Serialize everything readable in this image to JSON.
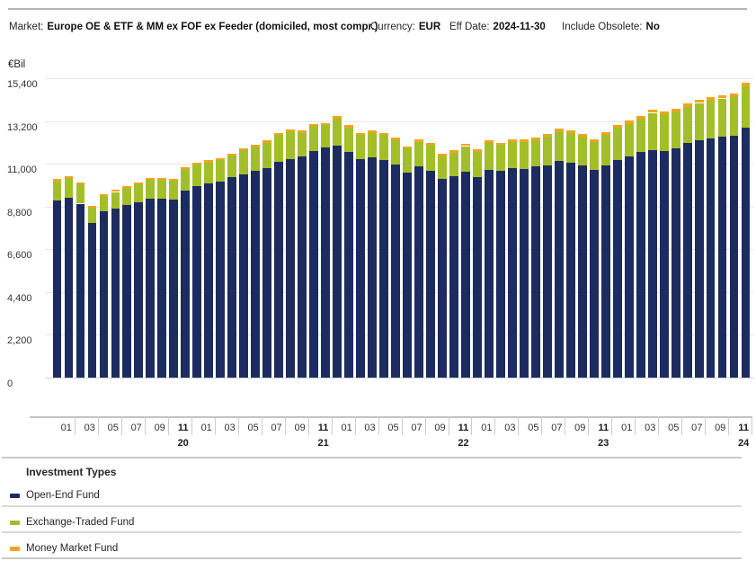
{
  "header": {
    "market_label": "Market:",
    "market_value": "Europe OE & ETF & MM ex FOF ex Feeder (domiciled, most compr.)",
    "currency_label": "Currency:",
    "currency_value": "EUR",
    "eff_date_label": "Eff Date:",
    "eff_date_value": "2024-11-30",
    "include_obsolete_label": "Include Obsolete:",
    "include_obsolete_value": "No"
  },
  "chart_data": {
    "type": "bar",
    "stacked": true,
    "title": "",
    "unit_label": "€Bil",
    "ylabel": "€Bil",
    "xlabel": "",
    "ylim": [
      0,
      15400
    ],
    "yticks": [
      0,
      2200,
      4400,
      6600,
      8800,
      11000,
      13200,
      15400
    ],
    "grid": true,
    "legend_title": "Investment Types",
    "legend_position": "bottom",
    "month_cell_labels": [
      "01",
      "03",
      "05",
      "07",
      "09",
      "11"
    ],
    "year_labels": [
      "20",
      "21",
      "22",
      "23",
      "24"
    ],
    "categories": [
      "2019-12",
      "2020-01",
      "2020-02",
      "2020-03",
      "2020-04",
      "2020-05",
      "2020-06",
      "2020-07",
      "2020-08",
      "2020-09",
      "2020-10",
      "2020-11",
      "2020-12",
      "2021-01",
      "2021-02",
      "2021-03",
      "2021-04",
      "2021-05",
      "2021-06",
      "2021-07",
      "2021-08",
      "2021-09",
      "2021-10",
      "2021-11",
      "2021-12",
      "2022-01",
      "2022-02",
      "2022-03",
      "2022-04",
      "2022-05",
      "2022-06",
      "2022-07",
      "2022-08",
      "2022-09",
      "2022-10",
      "2022-11",
      "2022-12",
      "2023-01",
      "2023-02",
      "2023-03",
      "2023-04",
      "2023-05",
      "2023-06",
      "2023-07",
      "2023-08",
      "2023-09",
      "2023-10",
      "2023-11",
      "2023-12",
      "2024-01",
      "2024-02",
      "2024-03",
      "2024-04",
      "2024-05",
      "2024-06",
      "2024-07",
      "2024-08",
      "2024-09",
      "2024-10",
      "2024-11"
    ],
    "series": [
      {
        "name": "Open-End Fund",
        "color": "#1c2c60",
        "values": [
          9090,
          9250,
          8950,
          7960,
          8540,
          8700,
          8900,
          9030,
          9210,
          9210,
          9165,
          9635,
          9840,
          10000,
          10100,
          10310,
          10470,
          10650,
          10780,
          11090,
          11250,
          11360,
          11670,
          11830,
          11950,
          11590,
          11250,
          11330,
          11200,
          10950,
          10550,
          10850,
          10650,
          10200,
          10350,
          10600,
          10300,
          10700,
          10650,
          10780,
          10730,
          10860,
          10930,
          11150,
          11050,
          10930,
          10700,
          10930,
          11200,
          11360,
          11590,
          11690,
          11640,
          11800,
          12080,
          12190,
          12310,
          12375,
          12430,
          12850
        ]
      },
      {
        "name": "Exchange-Traded Fund",
        "color": "#a2bf2a",
        "values": [
          1010,
          1000,
          980,
          770,
          820,
          850,
          880,
          900,
          975,
          975,
          970,
          1075,
          1120,
          1070,
          1080,
          1120,
          1230,
          1240,
          1310,
          1390,
          1420,
          1230,
          1280,
          1170,
          1390,
          1280,
          1230,
          1260,
          1280,
          1260,
          1230,
          1265,
          1310,
          1180,
          1230,
          1310,
          1310,
          1360,
          1310,
          1340,
          1390,
          1350,
          1470,
          1520,
          1510,
          1470,
          1420,
          1550,
          1640,
          1700,
          1720,
          1930,
          1890,
          1880,
          1860,
          1940,
          1940,
          1985,
          2000,
          2120
        ]
      },
      {
        "name": "Money Market Fund",
        "color": "#f2a41f",
        "values": [
          110,
          110,
          100,
          95,
          95,
          95,
          95,
          100,
          100,
          100,
          100,
          105,
          105,
          105,
          105,
          105,
          105,
          110,
          110,
          110,
          110,
          110,
          110,
          110,
          115,
          115,
          115,
          120,
          120,
          120,
          120,
          120,
          125,
          125,
          125,
          130,
          130,
          130,
          130,
          135,
          135,
          135,
          135,
          140,
          140,
          140,
          140,
          145,
          145,
          150,
          150,
          155,
          155,
          160,
          160,
          165,
          165,
          170,
          175,
          200
        ]
      }
    ]
  }
}
